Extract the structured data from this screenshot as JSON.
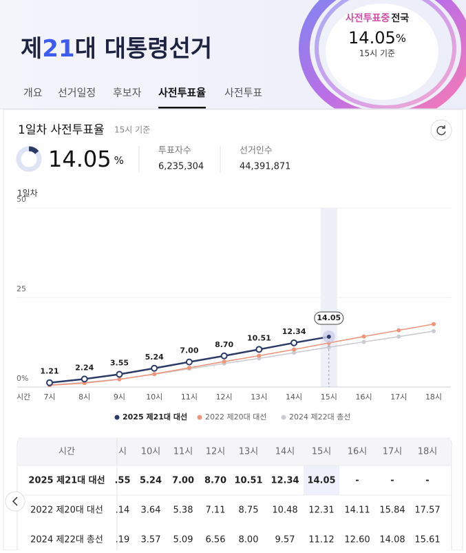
{
  "header": {
    "title_parts": [
      "제",
      "21",
      "대 대통령선거"
    ],
    "status": "사전투표중",
    "region": "전국",
    "rate": "14.05",
    "rate_unit": "%",
    "basis": "15시 기준"
  },
  "tabs": [
    "개요",
    "선거일정",
    "후보자",
    "사전투표율",
    "사전투표"
  ],
  "summary": {
    "title": "1일차 사전투표율",
    "basis": "15시 기준",
    "rate": 14.05,
    "rate_text": "14.05",
    "rate_unit": "%",
    "voters_label": "투표자수",
    "voters": "6,235,304",
    "electorate_label": "선거인수",
    "electorate": "44,391,871"
  },
  "chart_data": {
    "type": "line",
    "title": "1일차",
    "x_label": "시간",
    "categories": [
      "7시",
      "8시",
      "9시",
      "10시",
      "11시",
      "12시",
      "13시",
      "14시",
      "15시",
      "16시",
      "17시",
      "18시"
    ],
    "series": [
      {
        "name": "2025 제21대 대선",
        "color": "#2b3a67",
        "values": [
          1.21,
          2.24,
          3.55,
          5.24,
          7.0,
          8.7,
          10.51,
          12.34,
          14.05,
          null,
          null,
          null
        ],
        "value_labels": [
          "1.21",
          "2.24",
          "3.55",
          "5.24",
          "7.00",
          "8.70",
          "10.51",
          "12.34",
          "14.05",
          null,
          null,
          null
        ]
      },
      {
        "name": "2022 제20대 대선",
        "color": "#f0947a",
        "values": [
          0.5,
          1.1,
          2.14,
          3.64,
          5.38,
          7.11,
          8.75,
          10.48,
          12.31,
          14.11,
          15.84,
          17.57
        ]
      },
      {
        "name": "2024 제22대 총선",
        "color": "#cbcbd1",
        "values": [
          0.6,
          1.3,
          2.19,
          3.57,
          5.09,
          6.56,
          8.0,
          9.57,
          11.12,
          12.6,
          14.08,
          15.61
        ]
      }
    ],
    "ylim": [
      0,
      50
    ],
    "yticks": [
      {
        "value": 0,
        "label": "0%"
      },
      25,
      50
    ],
    "grid": true
  },
  "table": {
    "header": [
      "시간",
      "시",
      "10시",
      "11시",
      "12시",
      "13시",
      "14시",
      "15시",
      "16시",
      "17시",
      "18시"
    ],
    "rows": [
      [
        "2025 제21대 대선",
        ".55",
        "5.24",
        "7.00",
        "8.70",
        "10.51",
        "12.34",
        "14.05",
        "-",
        "-",
        "-"
      ],
      [
        "2022 제20대 대선",
        ".14",
        "3.64",
        "5.38",
        "7.11",
        "8.75",
        "10.48",
        "12.31",
        "14.11",
        "15.84",
        "17.57"
      ],
      [
        "2024 제22대 총선",
        ".19",
        "3.57",
        "5.09",
        "6.56",
        "8.00",
        "9.57",
        "11.12",
        "12.60",
        "14.08",
        "15.61"
      ]
    ]
  }
}
